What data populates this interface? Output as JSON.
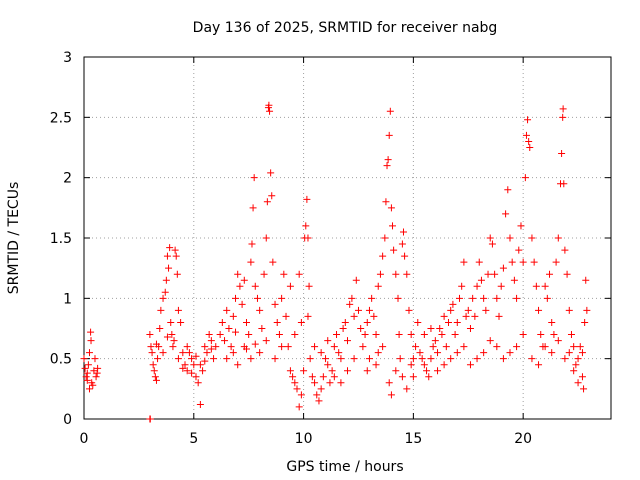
{
  "chart_data": {
    "type": "scatter",
    "title": "Day 136 of 2025, SRMTID for receiver nabg",
    "xlabel": "GPS time / hours",
    "ylabel": "SRMTID / TECUs",
    "xlim": [
      0,
      24
    ],
    "ylim": [
      0,
      3
    ],
    "xticks": [
      0,
      5,
      10,
      15,
      20
    ],
    "xtick_labels": [
      "0",
      "5",
      "10",
      "15",
      "20"
    ],
    "yticks": [
      0,
      0.5,
      1,
      1.5,
      2,
      2.5,
      3
    ],
    "ytick_labels": [
      "0",
      "0.5",
      "1",
      "1.5",
      "2",
      "2.5",
      "3"
    ],
    "grid": true,
    "marker": "+",
    "color": "#ff0000",
    "series": [
      {
        "name": "SRMTID",
        "points": [
          [
            0.0,
            0.5
          ],
          [
            0.05,
            0.42
          ],
          [
            0.1,
            0.35
          ],
          [
            0.15,
            0.38
          ],
          [
            0.2,
            0.45
          ],
          [
            0.25,
            0.55
          ],
          [
            0.3,
            0.72
          ],
          [
            0.32,
            0.65
          ],
          [
            0.35,
            0.3
          ],
          [
            0.4,
            0.28
          ],
          [
            0.45,
            0.4
          ],
          [
            0.5,
            0.5
          ],
          [
            0.55,
            0.35
          ],
          [
            0.6,
            0.38
          ],
          [
            0.62,
            0.42
          ],
          [
            0.25,
            0.25
          ],
          [
            0.15,
            0.32
          ],
          [
            3.0,
            0.0
          ],
          [
            3.02,
            0.0
          ],
          [
            3.0,
            0.7
          ],
          [
            3.05,
            0.6
          ],
          [
            3.1,
            0.55
          ],
          [
            3.15,
            0.45
          ],
          [
            3.2,
            0.4
          ],
          [
            3.25,
            0.35
          ],
          [
            3.3,
            0.32
          ],
          [
            3.35,
            0.5
          ],
          [
            3.4,
            0.6
          ],
          [
            3.45,
            0.75
          ],
          [
            3.5,
            0.9
          ],
          [
            3.6,
            1.0
          ],
          [
            3.7,
            1.05
          ],
          [
            3.75,
            1.15
          ],
          [
            3.8,
            1.35
          ],
          [
            3.85,
            1.25
          ],
          [
            3.9,
            1.42
          ],
          [
            3.95,
            0.8
          ],
          [
            4.0,
            0.7
          ],
          [
            4.1,
            0.65
          ],
          [
            4.15,
            1.4
          ],
          [
            4.2,
            1.35
          ],
          [
            4.25,
            1.2
          ],
          [
            4.3,
            0.9
          ],
          [
            4.4,
            0.8
          ],
          [
            4.5,
            0.55
          ],
          [
            4.6,
            0.45
          ],
          [
            4.7,
            0.4
          ],
          [
            4.8,
            0.55
          ],
          [
            4.9,
            0.5
          ],
          [
            5.0,
            0.45
          ],
          [
            5.1,
            0.35
          ],
          [
            5.2,
            0.3
          ],
          [
            5.3,
            0.12
          ],
          [
            5.4,
            0.4
          ],
          [
            5.5,
            0.6
          ],
          [
            5.6,
            0.55
          ],
          [
            5.7,
            0.7
          ],
          [
            5.8,
            0.65
          ],
          [
            5.9,
            0.5
          ],
          [
            6.0,
            0.6
          ],
          [
            3.3,
            0.62
          ],
          [
            3.6,
            0.55
          ],
          [
            3.8,
            0.68
          ],
          [
            4.05,
            0.6
          ],
          [
            4.3,
            0.5
          ],
          [
            4.5,
            0.42
          ],
          [
            4.7,
            0.6
          ],
          [
            4.9,
            0.38
          ],
          [
            5.1,
            0.52
          ],
          [
            5.3,
            0.45
          ],
          [
            5.5,
            0.48
          ],
          [
            5.8,
            0.58
          ],
          [
            6.2,
            0.7
          ],
          [
            6.3,
            0.8
          ],
          [
            6.4,
            0.65
          ],
          [
            6.5,
            0.9
          ],
          [
            6.6,
            0.75
          ],
          [
            6.7,
            0.6
          ],
          [
            6.8,
            0.85
          ],
          [
            6.9,
            1.0
          ],
          [
            7.0,
            1.2
          ],
          [
            7.1,
            1.1
          ],
          [
            7.2,
            0.95
          ],
          [
            7.3,
            1.15
          ],
          [
            7.4,
            0.8
          ],
          [
            7.5,
            0.7
          ],
          [
            7.6,
            1.3
          ],
          [
            7.65,
            1.45
          ],
          [
            7.7,
            1.75
          ],
          [
            7.75,
            2.0
          ],
          [
            7.8,
            1.1
          ],
          [
            7.9,
            1.0
          ],
          [
            8.0,
            0.9
          ],
          [
            8.1,
            0.75
          ],
          [
            8.2,
            1.2
          ],
          [
            8.3,
            1.5
          ],
          [
            8.35,
            1.8
          ],
          [
            8.4,
            2.58
          ],
          [
            8.42,
            2.6
          ],
          [
            8.45,
            2.55
          ],
          [
            8.5,
            2.04
          ],
          [
            8.55,
            1.85
          ],
          [
            8.6,
            1.3
          ],
          [
            8.7,
            0.95
          ],
          [
            8.8,
            0.8
          ],
          [
            8.9,
            0.7
          ],
          [
            9.0,
            1.0
          ],
          [
            9.1,
            1.2
          ],
          [
            9.2,
            0.85
          ],
          [
            9.3,
            0.6
          ],
          [
            9.4,
            0.4
          ],
          [
            6.5,
            0.5
          ],
          [
            6.8,
            0.55
          ],
          [
            7.0,
            0.45
          ],
          [
            7.3,
            0.6
          ],
          [
            7.6,
            0.5
          ],
          [
            8.0,
            0.55
          ],
          [
            8.3,
            0.65
          ],
          [
            8.7,
            0.5
          ],
          [
            9.0,
            0.6
          ],
          [
            7.8,
            0.62
          ],
          [
            6.9,
            0.72
          ],
          [
            7.4,
            0.58
          ],
          [
            9.5,
            0.35
          ],
          [
            9.6,
            0.3
          ],
          [
            9.7,
            0.25
          ],
          [
            9.8,
            0.1
          ],
          [
            9.9,
            0.2
          ],
          [
            10.0,
            0.4
          ],
          [
            10.05,
            1.5
          ],
          [
            10.1,
            1.6
          ],
          [
            10.15,
            1.82
          ],
          [
            10.2,
            1.5
          ],
          [
            10.25,
            1.1
          ],
          [
            10.3,
            0.5
          ],
          [
            10.4,
            0.35
          ],
          [
            10.5,
            0.3
          ],
          [
            10.6,
            0.2
          ],
          [
            10.7,
            0.15
          ],
          [
            10.8,
            0.25
          ],
          [
            10.9,
            0.35
          ],
          [
            11.0,
            0.5
          ],
          [
            11.1,
            0.45
          ],
          [
            11.2,
            0.3
          ],
          [
            11.3,
            0.4
          ],
          [
            11.4,
            0.6
          ],
          [
            11.5,
            0.7
          ],
          [
            11.6,
            0.55
          ],
          [
            11.7,
            0.5
          ],
          [
            11.8,
            0.75
          ],
          [
            11.9,
            0.8
          ],
          [
            12.0,
            0.65
          ],
          [
            12.1,
            0.95
          ],
          [
            12.2,
            1.0
          ],
          [
            12.3,
            0.85
          ],
          [
            12.4,
            1.15
          ],
          [
            12.5,
            0.9
          ],
          [
            12.6,
            0.75
          ],
          [
            9.6,
            0.7
          ],
          [
            9.9,
            0.8
          ],
          [
            10.2,
            0.85
          ],
          [
            10.5,
            0.6
          ],
          [
            10.8,
            0.55
          ],
          [
            11.1,
            0.65
          ],
          [
            11.4,
            0.35
          ],
          [
            11.7,
            0.3
          ],
          [
            12.0,
            0.4
          ],
          [
            12.3,
            0.5
          ],
          [
            9.4,
            1.1
          ],
          [
            9.8,
            1.2
          ],
          [
            12.7,
            0.6
          ],
          [
            12.8,
            0.7
          ],
          [
            12.9,
            0.8
          ],
          [
            13.0,
            0.9
          ],
          [
            13.1,
            1.0
          ],
          [
            13.2,
            0.85
          ],
          [
            13.3,
            0.7
          ],
          [
            13.4,
            1.1
          ],
          [
            13.5,
            1.2
          ],
          [
            13.6,
            1.35
          ],
          [
            13.7,
            1.5
          ],
          [
            13.75,
            1.8
          ],
          [
            13.8,
            2.1
          ],
          [
            13.85,
            2.15
          ],
          [
            13.9,
            2.35
          ],
          [
            13.95,
            2.55
          ],
          [
            14.0,
            1.75
          ],
          [
            14.05,
            1.6
          ],
          [
            14.1,
            1.4
          ],
          [
            14.2,
            1.2
          ],
          [
            14.3,
            1.0
          ],
          [
            14.35,
            0.7
          ],
          [
            14.4,
            0.5
          ],
          [
            14.5,
            1.45
          ],
          [
            14.55,
            1.55
          ],
          [
            14.6,
            1.35
          ],
          [
            14.7,
            1.2
          ],
          [
            14.8,
            0.9
          ],
          [
            14.9,
            0.7
          ],
          [
            15.0,
            0.5
          ],
          [
            15.1,
            0.6
          ],
          [
            15.2,
            0.8
          ],
          [
            13.0,
            0.5
          ],
          [
            13.3,
            0.45
          ],
          [
            13.6,
            0.6
          ],
          [
            13.9,
            0.3
          ],
          [
            14.0,
            0.2
          ],
          [
            14.2,
            0.4
          ],
          [
            14.5,
            0.35
          ],
          [
            14.7,
            0.25
          ],
          [
            13.4,
            0.55
          ],
          [
            12.9,
            0.4
          ],
          [
            14.9,
            0.45
          ],
          [
            15.0,
            0.35
          ],
          [
            15.3,
            0.55
          ],
          [
            15.4,
            0.5
          ],
          [
            15.5,
            0.45
          ],
          [
            15.6,
            0.4
          ],
          [
            15.7,
            0.35
          ],
          [
            15.8,
            0.5
          ],
          [
            15.9,
            0.6
          ],
          [
            16.0,
            0.65
          ],
          [
            16.1,
            0.55
          ],
          [
            16.2,
            0.75
          ],
          [
            16.3,
            0.7
          ],
          [
            16.4,
            0.85
          ],
          [
            16.5,
            0.6
          ],
          [
            16.6,
            0.8
          ],
          [
            16.7,
            0.9
          ],
          [
            16.8,
            0.95
          ],
          [
            16.9,
            0.7
          ],
          [
            17.0,
            0.8
          ],
          [
            17.1,
            1.0
          ],
          [
            17.2,
            1.1
          ],
          [
            17.3,
            1.3
          ],
          [
            17.4,
            0.85
          ],
          [
            17.5,
            0.9
          ],
          [
            17.6,
            0.75
          ],
          [
            17.7,
            1.0
          ],
          [
            17.8,
            0.85
          ],
          [
            17.9,
            1.1
          ],
          [
            18.0,
            1.3
          ],
          [
            18.1,
            1.15
          ],
          [
            18.2,
            1.0
          ],
          [
            18.3,
            0.9
          ],
          [
            18.4,
            1.2
          ],
          [
            18.5,
            1.5
          ],
          [
            18.6,
            1.45
          ],
          [
            18.7,
            1.2
          ],
          [
            18.8,
            1.0
          ],
          [
            18.9,
            0.85
          ],
          [
            19.0,
            1.1
          ],
          [
            19.1,
            1.25
          ],
          [
            19.2,
            1.7
          ],
          [
            19.3,
            1.9
          ],
          [
            19.4,
            1.5
          ],
          [
            19.5,
            1.3
          ],
          [
            19.6,
            1.15
          ],
          [
            19.7,
            1.0
          ],
          [
            19.8,
            1.4
          ],
          [
            19.9,
            1.6
          ],
          [
            20.0,
            1.3
          ],
          [
            15.5,
            0.7
          ],
          [
            15.8,
            0.75
          ],
          [
            16.1,
            0.4
          ],
          [
            16.4,
            0.45
          ],
          [
            16.7,
            0.5
          ],
          [
            17.0,
            0.55
          ],
          [
            17.3,
            0.6
          ],
          [
            17.6,
            0.45
          ],
          [
            17.9,
            0.5
          ],
          [
            18.2,
            0.55
          ],
          [
            18.5,
            0.65
          ],
          [
            18.8,
            0.6
          ],
          [
            19.1,
            0.5
          ],
          [
            19.4,
            0.55
          ],
          [
            19.7,
            0.6
          ],
          [
            20.0,
            0.7
          ],
          [
            20.1,
            2.0
          ],
          [
            20.15,
            2.35
          ],
          [
            20.2,
            2.48
          ],
          [
            20.25,
            2.3
          ],
          [
            20.3,
            2.25
          ],
          [
            20.4,
            1.5
          ],
          [
            20.5,
            1.3
          ],
          [
            20.6,
            1.1
          ],
          [
            20.7,
            0.9
          ],
          [
            20.8,
            0.7
          ],
          [
            20.9,
            0.6
          ],
          [
            21.0,
            1.1
          ],
          [
            21.1,
            1.0
          ],
          [
            21.2,
            1.2
          ],
          [
            21.3,
            0.8
          ],
          [
            21.4,
            0.7
          ],
          [
            21.5,
            1.3
          ],
          [
            21.6,
            1.5
          ],
          [
            21.7,
            1.95
          ],
          [
            21.75,
            2.2
          ],
          [
            21.8,
            2.5
          ],
          [
            21.82,
            2.57
          ],
          [
            21.85,
            1.95
          ],
          [
            21.9,
            1.4
          ],
          [
            22.0,
            1.2
          ],
          [
            22.1,
            0.9
          ],
          [
            22.2,
            0.7
          ],
          [
            22.3,
            0.6
          ],
          [
            22.4,
            0.45
          ],
          [
            22.5,
            0.5
          ],
          [
            22.6,
            0.6
          ],
          [
            22.7,
            0.35
          ],
          [
            22.75,
            0.25
          ],
          [
            22.8,
            0.8
          ],
          [
            22.85,
            1.15
          ],
          [
            22.9,
            0.9
          ],
          [
            22.7,
            0.55
          ],
          [
            22.5,
            0.3
          ],
          [
            22.3,
            0.4
          ],
          [
            22.1,
            0.55
          ],
          [
            21.9,
            0.5
          ],
          [
            21.6,
            0.65
          ],
          [
            21.3,
            0.55
          ],
          [
            21.0,
            0.6
          ],
          [
            20.7,
            0.45
          ],
          [
            20.4,
            0.5
          ]
        ]
      }
    ]
  }
}
